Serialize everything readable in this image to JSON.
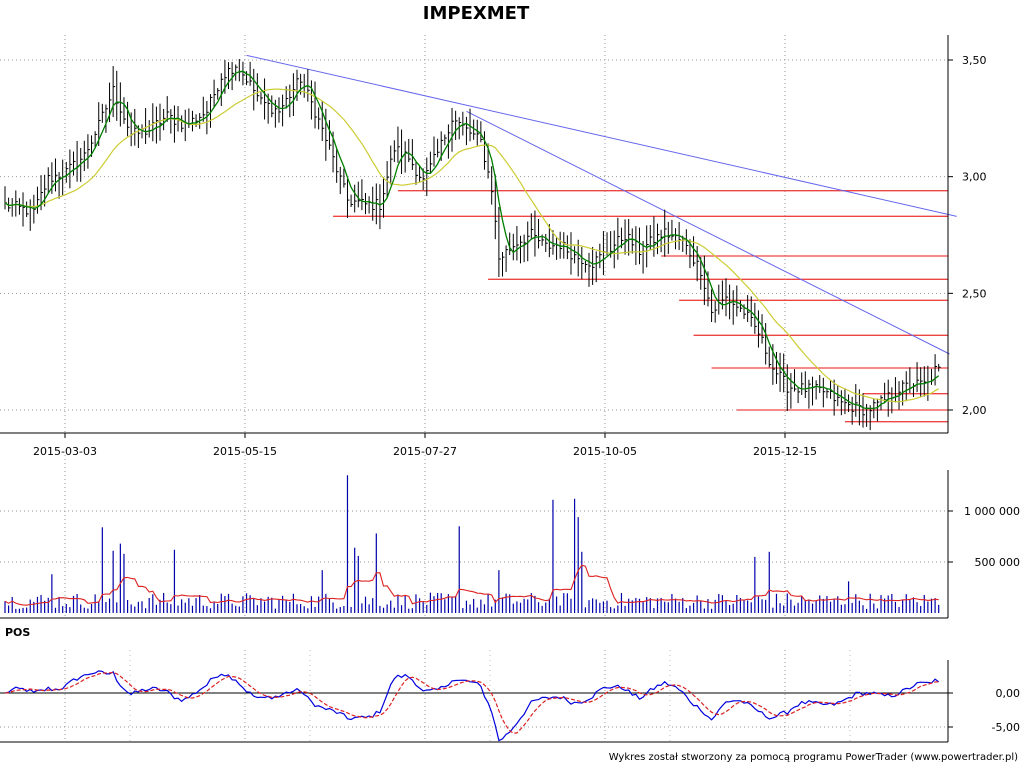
{
  "chart_data": {
    "type": "line",
    "title": "IMPEXMET",
    "footer": "Wykres został stworzony za pomocą programu PowerTrader (www.powertrader.pl)",
    "colors": {
      "price": "#000000",
      "ma_short": "#008000",
      "ma_long": "#cccc33",
      "trend": "#6666ee",
      "support": "#ee4444",
      "volume": "#0000aa",
      "volume_avg": "#dd2222",
      "pos": "#0000dd",
      "pos_signal": "#dd2222"
    },
    "price_panel": {
      "ylim": [
        1.95,
        3.58
      ],
      "y_ticks": [
        {
          "value": 3.5,
          "label": "3,50"
        },
        {
          "value": 3.0,
          "label": "3,00"
        },
        {
          "value": 2.5,
          "label": "2,50"
        },
        {
          "value": 2.0,
          "label": "2,00"
        }
      ],
      "x_ticks": [
        {
          "label": "2015-03-03",
          "index": 17
        },
        {
          "label": "2015-05-15",
          "index": 67
        },
        {
          "label": "2015-07-27",
          "index": 117
        },
        {
          "label": "2015-10-05",
          "index": 167
        },
        {
          "label": "2015-12-15",
          "index": 217
        }
      ],
      "close_anchors": [
        [
          0,
          2.88
        ],
        [
          5,
          2.86
        ],
        [
          8,
          2.85
        ],
        [
          12,
          2.99
        ],
        [
          17,
          3.02
        ],
        [
          22,
          3.09
        ],
        [
          26,
          3.22
        ],
        [
          30,
          3.37
        ],
        [
          35,
          3.18
        ],
        [
          40,
          3.2
        ],
        [
          45,
          3.26
        ],
        [
          50,
          3.22
        ],
        [
          56,
          3.28
        ],
        [
          60,
          3.43
        ],
        [
          64,
          3.48
        ],
        [
          67,
          3.42
        ],
        [
          71,
          3.32
        ],
        [
          76,
          3.28
        ],
        [
          82,
          3.42
        ],
        [
          86,
          3.28
        ],
        [
          90,
          3.12
        ],
        [
          95,
          2.9
        ],
        [
          100,
          2.88
        ],
        [
          104,
          2.88
        ],
        [
          108,
          3.12
        ],
        [
          112,
          3.08
        ],
        [
          116,
          2.98
        ],
        [
          120,
          3.1
        ],
        [
          124,
          3.25
        ],
        [
          128,
          3.2
        ],
        [
          132,
          3.15
        ],
        [
          135,
          2.95
        ],
        [
          137,
          2.65
        ],
        [
          142,
          2.72
        ],
        [
          146,
          2.75
        ],
        [
          150,
          2.7
        ],
        [
          154,
          2.71
        ],
        [
          158,
          2.66
        ],
        [
          163,
          2.63
        ],
        [
          167,
          2.68
        ],
        [
          172,
          2.75
        ],
        [
          176,
          2.68
        ],
        [
          180,
          2.73
        ],
        [
          183,
          2.76
        ],
        [
          188,
          2.72
        ],
        [
          193,
          2.6
        ],
        [
          196,
          2.42
        ],
        [
          200,
          2.48
        ],
        [
          205,
          2.42
        ],
        [
          209,
          2.33
        ],
        [
          213,
          2.18
        ],
        [
          217,
          2.1
        ],
        [
          222,
          2.09
        ],
        [
          227,
          2.08
        ],
        [
          232,
          2.03
        ],
        [
          236,
          2.01
        ],
        [
          239,
          2.0
        ],
        [
          243,
          2.03
        ],
        [
          248,
          2.09
        ],
        [
          252,
          2.11
        ],
        [
          256,
          2.11
        ],
        [
          258,
          2.17
        ]
      ],
      "trend_lines": [
        {
          "from": [
            67,
            3.52
          ],
          "to": [
            264,
            2.83
          ]
        },
        {
          "from": [
            128,
            3.28
          ],
          "to": [
            262,
            2.24
          ]
        }
      ],
      "support_levels": [
        {
          "value": 2.94,
          "from": 109
        },
        {
          "value": 2.83,
          "from": 91
        },
        {
          "value": 2.66,
          "from": 182
        },
        {
          "value": 2.56,
          "from": 134
        },
        {
          "value": 2.47,
          "from": 187
        },
        {
          "value": 2.32,
          "from": 191
        },
        {
          "value": 2.18,
          "from": 196
        },
        {
          "value": 2.07,
          "from": 238
        },
        {
          "value": 2.0,
          "from": 203
        },
        {
          "value": 1.95,
          "from": 233
        }
      ]
    },
    "volume_panel": {
      "ylim": [
        0,
        1350000
      ],
      "y_ticks": [
        {
          "value": 1000000,
          "label": "1 000 000"
        },
        {
          "value": 500000,
          "label": "500 000"
        }
      ],
      "spikes": [
        [
          13,
          380000
        ],
        [
          27,
          840000
        ],
        [
          30,
          610000
        ],
        [
          32,
          680000
        ],
        [
          33,
          580000
        ],
        [
          47,
          620000
        ],
        [
          88,
          420000
        ],
        [
          95,
          1350000
        ],
        [
          97,
          640000
        ],
        [
          98,
          560000
        ],
        [
          103,
          780000
        ],
        [
          126,
          850000
        ],
        [
          137,
          420000
        ],
        [
          152,
          1110000
        ],
        [
          158,
          1120000
        ],
        [
          159,
          940000
        ],
        [
          160,
          600000
        ],
        [
          208,
          550000
        ],
        [
          212,
          600000
        ],
        [
          234,
          310000
        ]
      ]
    },
    "pos_panel": {
      "ylim": [
        -8.5,
        5.0
      ],
      "y_ticks": [
        {
          "value": 0,
          "label": "0,00"
        },
        {
          "value": -5,
          "label": "-5,00"
        }
      ],
      "label": "POS"
    }
  }
}
